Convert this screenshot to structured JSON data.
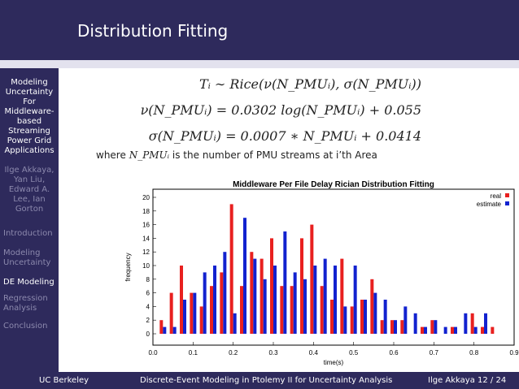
{
  "header": {
    "title": "Distribution Fitting"
  },
  "sidebar": {
    "title_lines": [
      "Modeling",
      "Uncertainty",
      "For",
      "Middleware-",
      "based",
      "Streaming",
      "Power Grid",
      "Applications"
    ],
    "author_lines": [
      "Ilge Akkaya,",
      "Yan Liu,",
      "Edward A.",
      "Lee, Ian",
      "Gorton"
    ],
    "nav": [
      {
        "lines": [
          "Introduction"
        ],
        "active": false
      },
      {
        "lines": [
          "Modeling",
          "Uncertainty"
        ],
        "active": false
      },
      {
        "lines": [
          "DE Modeling"
        ],
        "active": true
      },
      {
        "lines": [
          "Regression",
          "Analysis"
        ],
        "active": false
      },
      {
        "lines": [
          "Conclusion"
        ],
        "active": false
      }
    ]
  },
  "equations": {
    "line1": "Tᵢ ∼ Rice(ν(N_PMUᵢ), σ(N_PMUᵢ))",
    "line2": "ν(N_PMUᵢ) = 0.0302 log(N_PMUᵢ) + 0.055",
    "line3": "σ(N_PMUᵢ) = 0.0007 ∗ N_PMUᵢ + 0.0414",
    "where_prefix": "where",
    "where_var": "N_PMUᵢ",
    "where_suffix": "is the number of PMU streams at i’th Area"
  },
  "chart_data": {
    "type": "bar",
    "title": "Middleware Per File Delay Rician Distribution Fitting",
    "xlabel": "time(s)",
    "ylabel": "frequency",
    "xlim": [
      0.0,
      0.9
    ],
    "ylim": [
      0,
      20
    ],
    "xticks": [
      "0.0",
      "0.1",
      "0.2",
      "0.3",
      "0.4",
      "0.5",
      "0.6",
      "0.7",
      "0.8",
      "0.9"
    ],
    "yticks": [
      "0",
      "2",
      "4",
      "6",
      "8",
      "10",
      "12",
      "14",
      "16",
      "18",
      "20"
    ],
    "legend_position": "top-right",
    "x": [
      0.025,
      0.05,
      0.075,
      0.1,
      0.125,
      0.15,
      0.175,
      0.2,
      0.225,
      0.25,
      0.275,
      0.3,
      0.325,
      0.35,
      0.375,
      0.4,
      0.425,
      0.45,
      0.475,
      0.5,
      0.525,
      0.55,
      0.575,
      0.6,
      0.625,
      0.65,
      0.675,
      0.7,
      0.725,
      0.75,
      0.775,
      0.8,
      0.825,
      0.85,
      0.875
    ],
    "series": [
      {
        "name": "real",
        "color": "#e8201f",
        "values": [
          2,
          6,
          10,
          6,
          4,
          7,
          9,
          19,
          7,
          12,
          11,
          14,
          7,
          7,
          14,
          16,
          7,
          5,
          11,
          4,
          5,
          8,
          2,
          2,
          2,
          0,
          1,
          2,
          0,
          1,
          0,
          3,
          1,
          1,
          0
        ]
      },
      {
        "name": "estimate",
        "color": "#1222cf",
        "values": [
          1,
          1,
          5,
          6,
          9,
          10,
          12,
          3,
          17,
          11,
          8,
          10,
          15,
          9,
          8,
          10,
          11,
          10,
          4,
          10,
          5,
          6,
          5,
          2,
          4,
          3,
          1,
          2,
          1,
          1,
          3,
          1,
          3,
          0,
          0
        ]
      }
    ]
  },
  "footer": {
    "left": "UC Berkeley",
    "center": "Discrete-Event Modeling in Ptolemy II for Uncertainty Analysis",
    "right": "Ilge Akkaya    12 / 24"
  }
}
